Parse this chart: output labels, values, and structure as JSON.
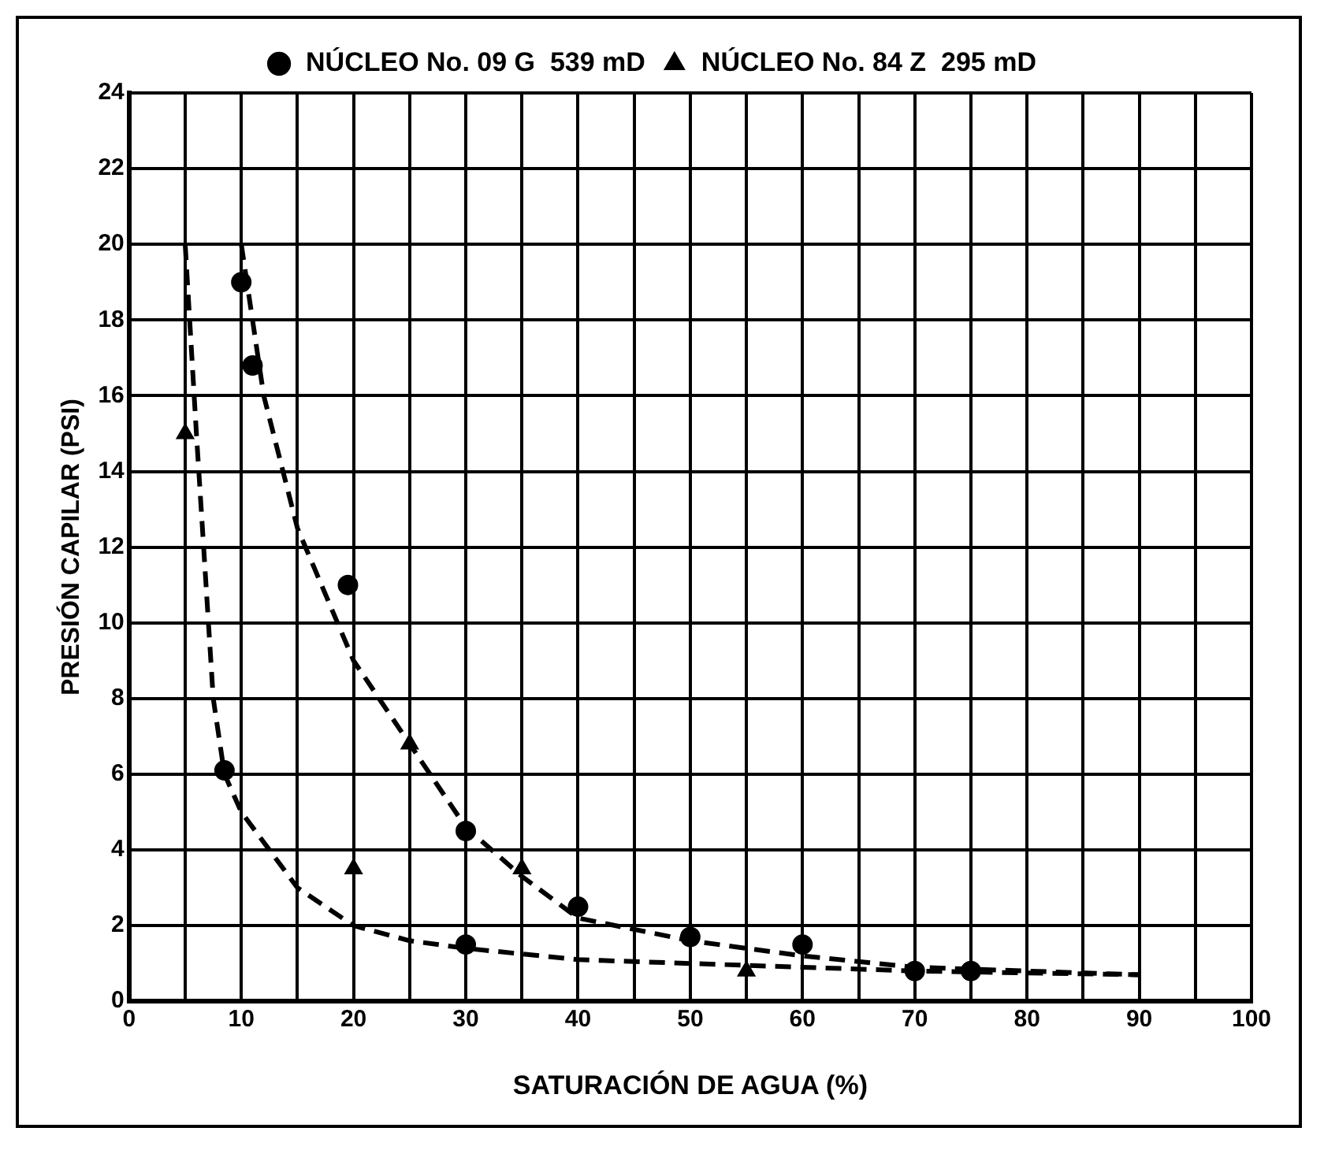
{
  "chart_data": {
    "type": "scatter",
    "xlabel": "SATURACIÓN DE AGUA (%)",
    "ylabel": "PRESIÓN CAPILAR (PSI)",
    "xlim": [
      0,
      100
    ],
    "ylim": [
      0,
      24
    ],
    "xticks": [
      0,
      {
        "value": 5,
        "label": null
      },
      10,
      {
        "value": 15,
        "label": null
      },
      20,
      {
        "value": 25,
        "label": null
      },
      30,
      {
        "value": 35,
        "label": null
      },
      40,
      {
        "value": 45,
        "label": null
      },
      50,
      {
        "value": 55,
        "label": null
      },
      60,
      {
        "value": 65,
        "label": null
      },
      70,
      {
        "value": 75,
        "label": null
      },
      80,
      {
        "value": 85,
        "label": null
      },
      90,
      {
        "value": 95,
        "label": null
      },
      100
    ],
    "yticks": [
      0,
      2,
      4,
      6,
      8,
      10,
      12,
      14,
      16,
      18,
      20,
      22,
      24
    ],
    "grid": true,
    "legend": "top",
    "series": [
      {
        "name": "NÚCLEO No. 09 G  539 mD",
        "type": "scatter",
        "marker": "circle",
        "color": "#000000",
        "x": [
          10,
          11,
          19.5,
          8.5,
          30,
          30,
          40,
          50,
          60,
          70,
          75
        ],
        "values": [
          19,
          16.8,
          11,
          6.1,
          4.5,
          1.5,
          2.5,
          1.7,
          1.5,
          0.8,
          0.8
        ]
      },
      {
        "name": "NÚCLEO No. 84 Z  295 mD",
        "type": "scatter",
        "marker": "triangle",
        "color": "#000000",
        "x": [
          5,
          20,
          25,
          35,
          55
        ],
        "values": [
          15,
          3.5,
          6.8,
          3.5,
          0.8
        ]
      },
      {
        "type": "line",
        "line_style": "dashed",
        "color": "#000000",
        "x": [
          10,
          12,
          15,
          20,
          25,
          30,
          35,
          40,
          50,
          60,
          70,
          80,
          90
        ],
        "values": [
          20,
          16,
          12.5,
          9,
          6.8,
          4.6,
          3.3,
          2.2,
          1.6,
          1.2,
          0.9,
          0.8,
          0.7
        ]
      },
      {
        "type": "line",
        "line_style": "dashed",
        "color": "#000000",
        "x": [
          5,
          6,
          7.5,
          8.5,
          10,
          15,
          20,
          25,
          30,
          40,
          50,
          60,
          70,
          90
        ],
        "values": [
          20,
          15,
          8,
          6,
          5,
          3,
          2,
          1.6,
          1.4,
          1.1,
          1,
          0.9,
          0.8,
          0.7
        ]
      }
    ]
  }
}
